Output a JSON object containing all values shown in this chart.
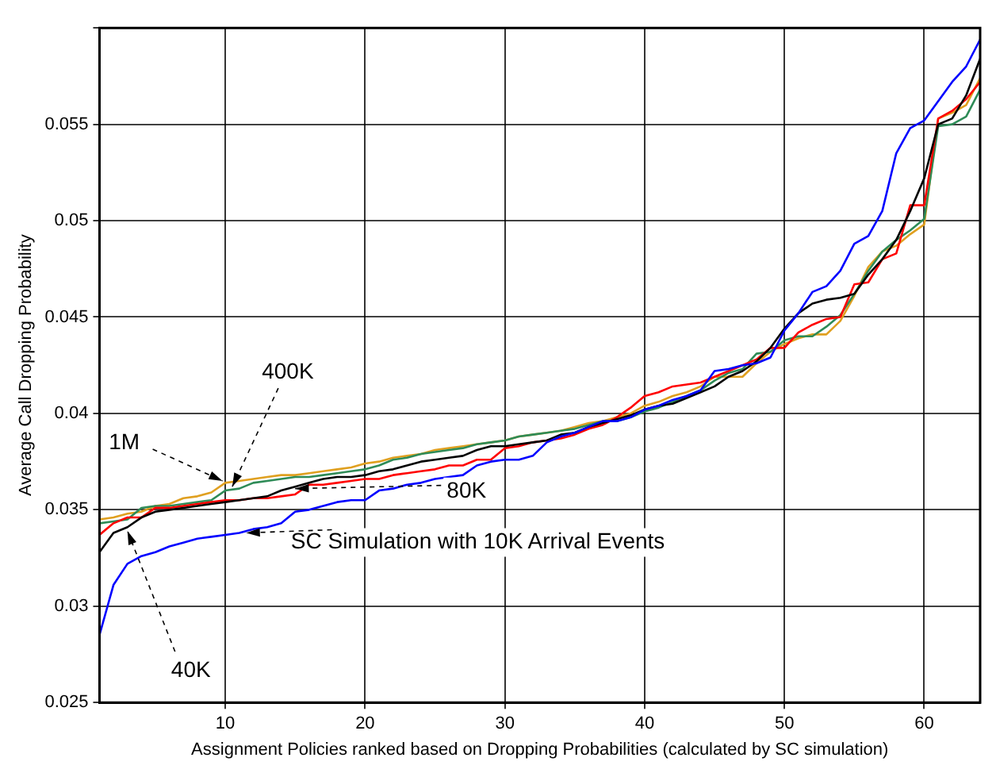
{
  "chart_data": {
    "type": "line",
    "xlabel": "Assignment Policies ranked based on Dropping Probabilities (calculated by SC simulation)",
    "ylabel": "Average Call Dropping Probability",
    "x": [
      1,
      2,
      3,
      4,
      5,
      6,
      7,
      8,
      9,
      10,
      11,
      12,
      13,
      14,
      15,
      16,
      17,
      18,
      19,
      20,
      21,
      22,
      23,
      24,
      25,
      26,
      27,
      28,
      29,
      30,
      31,
      32,
      33,
      34,
      35,
      36,
      37,
      38,
      39,
      40,
      41,
      42,
      43,
      44,
      45,
      46,
      47,
      48,
      49,
      50,
      51,
      52,
      53,
      54,
      55,
      56,
      57,
      58,
      59,
      60,
      61,
      62,
      63,
      64
    ],
    "series": [
      {
        "color": "#0000ff",
        "values": [
          0.0285,
          0.0311,
          0.0322,
          0.0326,
          0.0328,
          0.0331,
          0.0333,
          0.0335,
          0.0336,
          0.0337,
          0.0338,
          0.034,
          0.0341,
          0.0343,
          0.0349,
          0.035,
          0.0352,
          0.0354,
          0.0355,
          0.0355,
          0.036,
          0.0361,
          0.0363,
          0.0364,
          0.0366,
          0.0367,
          0.0368,
          0.0373,
          0.0375,
          0.0376,
          0.0376,
          0.0378,
          0.0385,
          0.0388,
          0.039,
          0.0393,
          0.0396,
          0.0396,
          0.0398,
          0.0402,
          0.0404,
          0.0407,
          0.0409,
          0.0412,
          0.0422,
          0.0423,
          0.0425,
          0.0426,
          0.0429,
          0.0443,
          0.0452,
          0.0463,
          0.0466,
          0.0474,
          0.0488,
          0.0492,
          0.0505,
          0.0535,
          0.0548,
          0.0552,
          0.0562,
          0.0572,
          0.058,
          0.0594
        ]
      },
      {
        "color": "#000000",
        "values": [
          0.0328,
          0.0338,
          0.0341,
          0.0346,
          0.0349,
          0.035,
          0.0351,
          0.0352,
          0.0353,
          0.0354,
          0.0355,
          0.0356,
          0.0357,
          0.036,
          0.0362,
          0.0364,
          0.0366,
          0.0367,
          0.0367,
          0.0368,
          0.037,
          0.0371,
          0.0373,
          0.0375,
          0.0376,
          0.0377,
          0.0378,
          0.0381,
          0.0383,
          0.0383,
          0.0384,
          0.0385,
          0.0386,
          0.0389,
          0.039,
          0.0393,
          0.0395,
          0.0397,
          0.0399,
          0.0402,
          0.0404,
          0.0405,
          0.0408,
          0.0411,
          0.0414,
          0.0419,
          0.0422,
          0.0427,
          0.0434,
          0.0444,
          0.0452,
          0.0457,
          0.0459,
          0.046,
          0.0462,
          0.0472,
          0.048,
          0.049,
          0.0505,
          0.0522,
          0.055,
          0.0553,
          0.0565,
          0.0584
        ]
      },
      {
        "color": "#ff0000",
        "values": [
          0.0337,
          0.0343,
          0.0346,
          0.0346,
          0.0351,
          0.0351,
          0.0352,
          0.0353,
          0.0354,
          0.0355,
          0.0355,
          0.0356,
          0.0356,
          0.0357,
          0.0358,
          0.0363,
          0.0363,
          0.0364,
          0.0365,
          0.0366,
          0.0366,
          0.0368,
          0.0369,
          0.037,
          0.0371,
          0.0373,
          0.0373,
          0.0376,
          0.0376,
          0.0382,
          0.0383,
          0.0385,
          0.0386,
          0.0387,
          0.0389,
          0.0392,
          0.0394,
          0.0398,
          0.0403,
          0.0409,
          0.0411,
          0.0414,
          0.0415,
          0.0416,
          0.0419,
          0.0422,
          0.0425,
          0.0428,
          0.0434,
          0.0434,
          0.0442,
          0.0446,
          0.0449,
          0.045,
          0.0467,
          0.0468,
          0.048,
          0.0483,
          0.0508,
          0.0508,
          0.0553,
          0.0557,
          0.0563,
          0.0572
        ]
      },
      {
        "color": "#2e8b57",
        "values": [
          0.0343,
          0.0344,
          0.0345,
          0.0351,
          0.0352,
          0.0352,
          0.0353,
          0.0354,
          0.0355,
          0.036,
          0.0361,
          0.0364,
          0.0365,
          0.0366,
          0.0367,
          0.0367,
          0.0368,
          0.0369,
          0.037,
          0.0371,
          0.0373,
          0.0376,
          0.0377,
          0.0379,
          0.038,
          0.0381,
          0.0382,
          0.0384,
          0.0385,
          0.0386,
          0.0388,
          0.0389,
          0.039,
          0.0391,
          0.0392,
          0.0394,
          0.0396,
          0.0396,
          0.0398,
          0.0401,
          0.0403,
          0.0406,
          0.0409,
          0.0412,
          0.0417,
          0.0421,
          0.0423,
          0.0431,
          0.0432,
          0.0438,
          0.044,
          0.044,
          0.0445,
          0.0451,
          0.0462,
          0.0474,
          0.0484,
          0.049,
          0.0495,
          0.0501,
          0.0549,
          0.055,
          0.0554,
          0.0568
        ]
      },
      {
        "color": "#e0a020",
        "values": [
          0.0345,
          0.0346,
          0.0348,
          0.0349,
          0.0352,
          0.0353,
          0.0356,
          0.0357,
          0.0359,
          0.0364,
          0.0365,
          0.0366,
          0.0367,
          0.0368,
          0.0368,
          0.0369,
          0.037,
          0.0371,
          0.0372,
          0.0374,
          0.0375,
          0.0377,
          0.0378,
          0.0379,
          0.0381,
          0.0382,
          0.0383,
          0.0384,
          0.0385,
          0.0386,
          0.0388,
          0.0389,
          0.039,
          0.0391,
          0.0393,
          0.0395,
          0.0396,
          0.0398,
          0.04,
          0.0404,
          0.0406,
          0.0409,
          0.0411,
          0.0414,
          0.0419,
          0.0419,
          0.0419,
          0.0426,
          0.0432,
          0.0436,
          0.0439,
          0.0441,
          0.0441,
          0.0448,
          0.0461,
          0.0476,
          0.0484,
          0.0487,
          0.0493,
          0.0498,
          0.0553,
          0.0556,
          0.056,
          0.0574
        ]
      }
    ],
    "xlim": [
      1,
      64
    ],
    "xticks": [
      10,
      20,
      30,
      40,
      50,
      60
    ],
    "ylim": [
      0.025,
      0.06
    ],
    "yticks": [
      0.025,
      0.03,
      0.035,
      0.04,
      0.045,
      0.05,
      0.055,
      {
        "value": 0.06,
        "label": null
      }
    ],
    "grid": true,
    "line_style": "solid",
    "marker": "none",
    "legend": false,
    "annotations": [
      {
        "text": "400K",
        "x": 10.5,
        "y": 0.0362
      },
      {
        "text": "1M",
        "x": 9.8,
        "y": 0.0365
      },
      {
        "text": "80K",
        "x": 15,
        "y": 0.0361
      },
      {
        "text": "SC Simulation with 10K Arrival Events",
        "x": 11.5,
        "y": 0.0338
      },
      {
        "text": "40K",
        "x": 3,
        "y": 0.0339
      }
    ]
  }
}
